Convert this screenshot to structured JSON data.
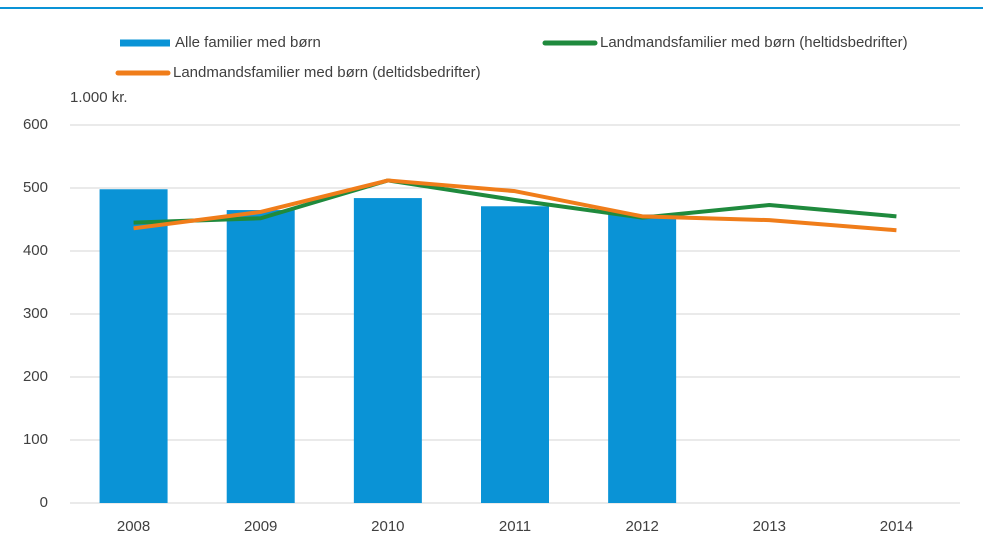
{
  "chart_data": {
    "type": "bar",
    "y_axis_label": "1.000 kr.",
    "categories": [
      "2008",
      "2009",
      "2010",
      "2011",
      "2012",
      "2013",
      "2014"
    ],
    "series": [
      {
        "name": "Alle familier med børn",
        "type": "bar",
        "color": "#0a93d6",
        "values": [
          498,
          465,
          484,
          471,
          458,
          null,
          null
        ]
      },
      {
        "name": "Landmandsfamilier med børn (heltidsbedrifter)",
        "type": "line",
        "color": "#1f8a3d",
        "values": [
          445,
          452,
          512,
          481,
          453,
          473,
          455
        ]
      },
      {
        "name": "Landmandsfamilier med børn (deltidsbedrifter)",
        "type": "line",
        "color": "#f07d1a",
        "values": [
          436,
          462,
          512,
          495,
          455,
          449,
          433
        ]
      }
    ],
    "ylim": [
      0,
      600
    ],
    "yticks": [
      0,
      100,
      200,
      300,
      400,
      500,
      600
    ],
    "grid": true
  }
}
